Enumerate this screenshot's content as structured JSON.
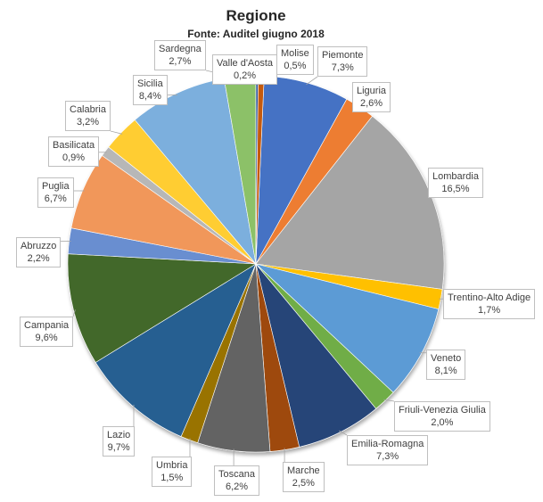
{
  "chart_data": {
    "type": "pie",
    "title": "Regione",
    "subtitle": "Fonte: Auditel giugno 2018",
    "slices": [
      {
        "name": "Piemonte",
        "value": 7.3,
        "label": "7,3%",
        "color": "#4472c4"
      },
      {
        "name": "Liguria",
        "value": 2.6,
        "label": "2,6%",
        "color": "#ed7d31"
      },
      {
        "name": "Lombardia",
        "value": 16.5,
        "label": "16,5%",
        "color": "#a5a5a5"
      },
      {
        "name": "Trentino-Alto Adige",
        "value": 1.7,
        "label": "1,7%",
        "color": "#ffc000"
      },
      {
        "name": "Veneto",
        "value": 8.1,
        "label": "8,1%",
        "color": "#5b9bd5"
      },
      {
        "name": "Friuli-Venezia Giulia",
        "value": 2.0,
        "label": "2,0%",
        "color": "#70ad47"
      },
      {
        "name": "Emilia-Romagna",
        "value": 7.3,
        "label": "7,3%",
        "color": "#264478"
      },
      {
        "name": "Marche",
        "value": 2.5,
        "label": "2,5%",
        "color": "#9e480e"
      },
      {
        "name": "Toscana",
        "value": 6.2,
        "label": "6,2%",
        "color": "#636363"
      },
      {
        "name": "Umbria",
        "value": 1.5,
        "label": "1,5%",
        "color": "#997300"
      },
      {
        "name": "Lazio",
        "value": 9.7,
        "label": "9,7%",
        "color": "#255e91"
      },
      {
        "name": "Campania",
        "value": 9.6,
        "label": "9,6%",
        "color": "#43682b"
      },
      {
        "name": "Abruzzo",
        "value": 2.2,
        "label": "2,2%",
        "color": "#698ed0"
      },
      {
        "name": "Puglia",
        "value": 6.7,
        "label": "6,7%",
        "color": "#f1975a"
      },
      {
        "name": "Basilicata",
        "value": 0.9,
        "label": "0,9%",
        "color": "#b7b7b7"
      },
      {
        "name": "Calabria",
        "value": 3.2,
        "label": "3,2%",
        "color": "#ffcd33"
      },
      {
        "name": "Sicilia",
        "value": 8.4,
        "label": "8,4%",
        "color": "#7cafdd"
      },
      {
        "name": "Sardegna",
        "value": 2.7,
        "label": "2,7%",
        "color": "#8cc168"
      },
      {
        "name": "Valle d'Aosta",
        "value": 0.2,
        "label": "0,2%",
        "color": "#335aa1"
      },
      {
        "name": "Molise",
        "value": 0.5,
        "label": "0,5%",
        "color": "#c55a11"
      }
    ]
  }
}
